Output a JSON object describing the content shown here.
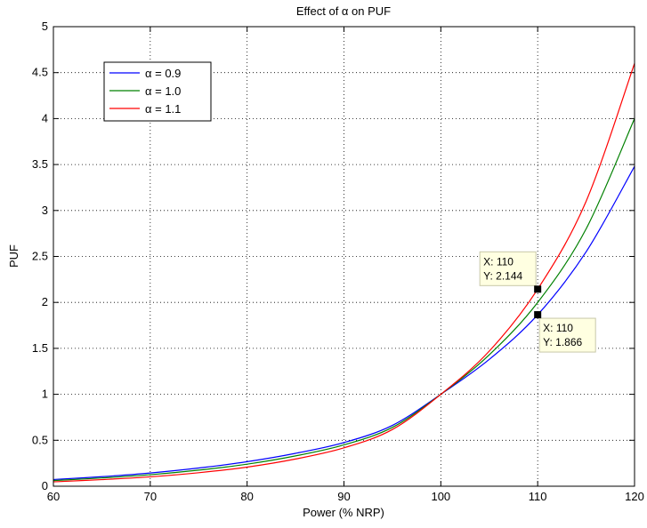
{
  "chart_data": {
    "type": "line",
    "title": "Effect of α on PUF",
    "xlabel": "Power (% NRP)",
    "ylabel": "PUF",
    "xlim": [
      60,
      120
    ],
    "ylim": [
      0,
      5
    ],
    "xticks": [
      60,
      70,
      80,
      90,
      100,
      110,
      120
    ],
    "xtick_labels": [
      "60",
      "70",
      "80",
      "90",
      "100",
      "110",
      "120"
    ],
    "yticks": [
      0,
      0.5,
      1,
      1.5,
      2,
      2.5,
      3,
      3.5,
      4,
      4.5,
      5
    ],
    "ytick_labels": [
      "0",
      "0.5",
      "1",
      "1.5",
      "2",
      "2.5",
      "3",
      "3.5",
      "4",
      "4.5",
      "5"
    ],
    "grid": true,
    "legend_position": "top-left",
    "x": [
      60,
      65,
      70,
      75,
      80,
      85,
      90,
      95,
      100,
      105,
      110,
      115,
      120
    ],
    "series": [
      {
        "name": "α = 0.9",
        "color": "#0000ff",
        "values": [
          0.073,
          0.104,
          0.144,
          0.198,
          0.267,
          0.358,
          0.475,
          0.662,
          1.0,
          1.38,
          1.866,
          2.55,
          3.48
        ]
      },
      {
        "name": "α = 1.0",
        "color": "#008000",
        "values": [
          0.062,
          0.09,
          0.125,
          0.175,
          0.24,
          0.33,
          0.45,
          0.64,
          1.0,
          1.43,
          2.0,
          2.8,
          4.0
        ]
      },
      {
        "name": "α = 1.1",
        "color": "#ff0000",
        "values": [
          0.048,
          0.072,
          0.102,
          0.147,
          0.208,
          0.296,
          0.418,
          0.617,
          1.0,
          1.47,
          2.144,
          3.1,
          4.6
        ]
      }
    ],
    "annotations": [
      {
        "x": 110,
        "y": 2.144,
        "x_text": "X: 110",
        "y_text": "Y: 2.144",
        "placement": "upper-left"
      },
      {
        "x": 110,
        "y": 1.866,
        "x_text": "X: 110",
        "y_text": "Y: 1.866",
        "placement": "lower-right"
      }
    ]
  }
}
